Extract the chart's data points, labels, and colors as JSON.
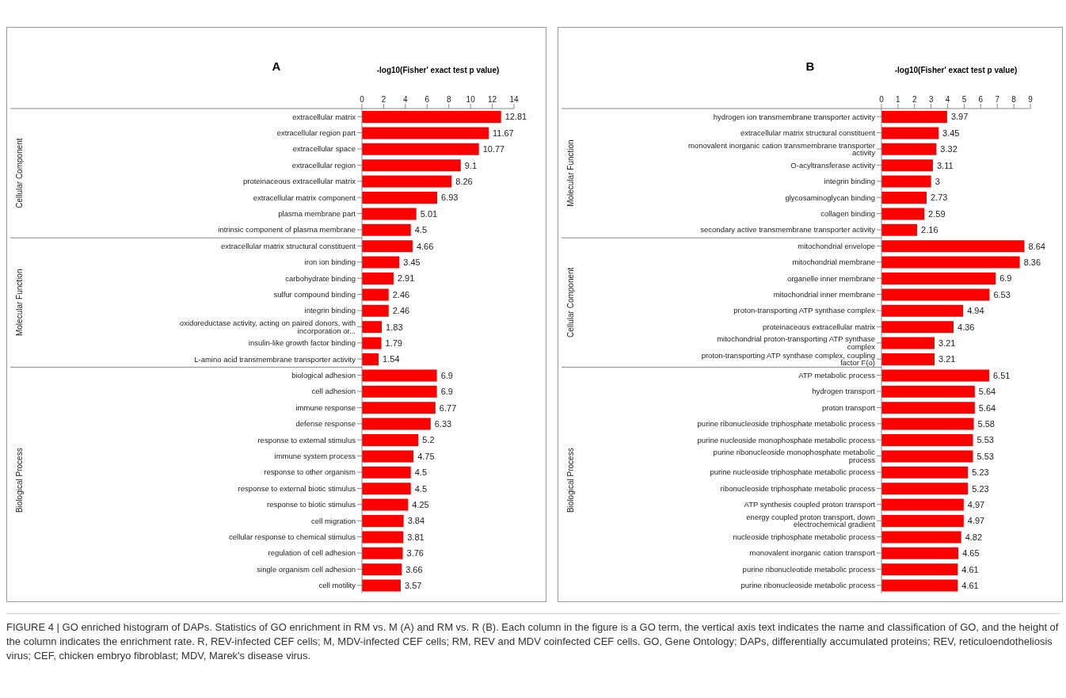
{
  "chart_data": [
    {
      "type": "bar",
      "orientation": "horizontal",
      "title": "A",
      "xlabel": "-log10(Fisher' exact test p value)",
      "color": "#ff0000",
      "xlim": [
        0,
        14
      ],
      "xticks": [
        0,
        2,
        4,
        6,
        8,
        10,
        12,
        14
      ],
      "data_labels": true,
      "categories": [
        "extracellular matrix",
        "extracellular region part",
        "extracellular space",
        "extracellular region",
        "proteinaceous extracellular matrix",
        "extracellular matrix component",
        "plasma membrane part",
        "intrinsic component of plasma membrane",
        "extracellular matrix structural constituent",
        "iron ion binding",
        "carbohydrate binding",
        "sulfur compound binding",
        "integrin binding",
        "oxidoreductase activity, acting on paired donors, with incorporation or...",
        "insulin-like growth factor binding",
        "L-amino acid transmembrane transporter activity",
        "biological adhesion",
        "cell adhesion",
        "immune response",
        "defense response",
        "response to external stimulus",
        "immune system process",
        "response to other organism",
        "response to external biotic stimulus",
        "response to biotic stimulus",
        "cell migration",
        "cellular response to chemical stimulus",
        "regulation of cell adhesion",
        "single organism cell adhesion",
        "cell motility"
      ],
      "values": [
        12.81,
        11.67,
        10.77,
        9.1,
        8.26,
        6.93,
        5.01,
        4.5,
        4.66,
        3.45,
        2.91,
        2.46,
        2.46,
        1.83,
        1.79,
        1.54,
        6.9,
        6.9,
        6.77,
        6.33,
        5.2,
        4.75,
        4.5,
        4.5,
        4.25,
        3.84,
        3.81,
        3.76,
        3.66,
        3.57
      ],
      "annotations": [
        "Cellular Component",
        "Molecular Function",
        "Biological Process"
      ]
    },
    {
      "type": "bar",
      "orientation": "horizontal",
      "title": "B",
      "xlabel": "-log10(Fisher' exact test p value)",
      "color": "#ff0000",
      "xlim": [
        0,
        9
      ],
      "xticks": [
        0,
        1,
        2,
        3,
        4,
        5,
        6,
        7,
        8,
        9
      ],
      "data_labels": true,
      "categories": [
        "hydrogen ion transmembrane transporter activity",
        "extracellular matrix structural constituent",
        "monovalent inorganic cation transmembrane transporter activity",
        "O-acyltransferase activity",
        "integrin binding",
        "glycosaminoglycan binding",
        "collagen binding",
        "secondary active transmembrane transporter activity",
        "mitochondrial envelope",
        "mitochondrial membrane",
        "organelle inner membrane",
        "mitochondrial inner membrane",
        "proton-transporting ATP synthase complex",
        "proteinaceous extracellular matrix",
        "mitochondrial proton-transporting ATP synthase complex",
        "proton-transporting ATP synthase complex, coupling factor F(o)",
        "ATP metabolic process",
        "hydrogen transport",
        "proton transport",
        "purine ribonucleoside triphosphate metabolic process",
        "purine nucleoside monophosphate metabolic process",
        "purine ribonucleoside monophosphate metabolic process",
        "purine nucleoside triphosphate metabolic process",
        "ribonucleoside triphosphate metabolic process",
        "ATP synthesis coupled proton transport",
        "energy coupled proton transport, down electrochemical gradient",
        "nucleoside triphosphate metabolic process",
        "monovalent inorganic cation transport",
        "purine ribonucleotide metabolic process",
        "purine ribonucleoside metabolic process"
      ],
      "values": [
        3.97,
        3.45,
        3.32,
        3.11,
        3,
        2.73,
        2.59,
        2.16,
        8.64,
        8.36,
        6.9,
        6.53,
        4.94,
        4.36,
        3.21,
        3.21,
        6.51,
        5.64,
        5.64,
        5.58,
        5.53,
        5.53,
        5.23,
        5.23,
        4.97,
        4.97,
        4.82,
        4.65,
        4.61,
        4.61
      ],
      "annotations": [
        "Molecular Function",
        "Cellular Component",
        "Biological Process",
        "FIGURE 4 | GO enriched histogram of DAPs. Statistics of GO enrichment in RM vs. M (A) and RM vs. R (B). Each column in the figure is a GO term, the vertical axis text indicates the name and classification of GO, and the height of the column indicates the enrichment rate. R, REV-infected CEF cells; M, MDV-infected CEF cells; RM, REV and MDV coinfected CEF cells. GO, Gene Ontology; DAPs, differentially accumulated proteins; REV, reticuloendotheliosis virus; CEF, chicken embryo fibroblast; MDV, Marek's disease virus."
      ]
    }
  ]
}
